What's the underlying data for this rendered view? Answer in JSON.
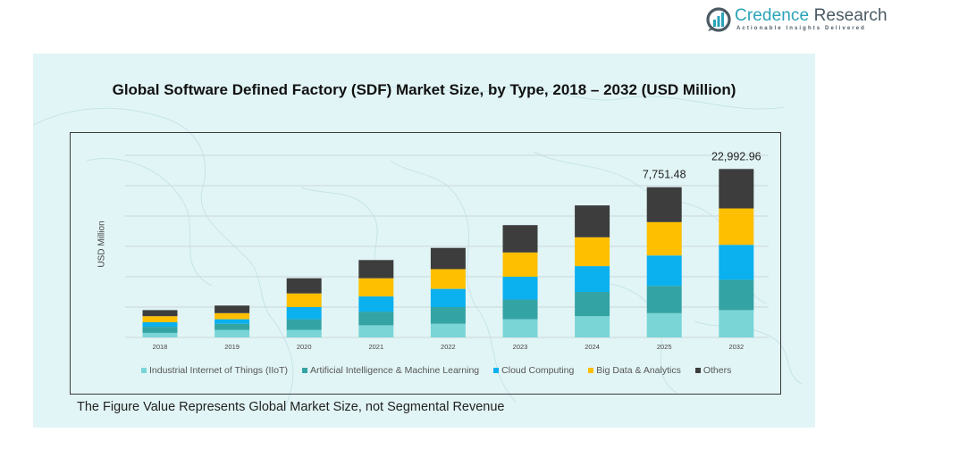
{
  "logo": {
    "brand_primary": "Credence",
    "brand_secondary": "Research",
    "tagline": "Actionable Insights Delivered",
    "icon": "bar-chart-speech-bubble-icon",
    "colors": {
      "primary": "#2aa3b8",
      "secondary": "#4a5a63"
    }
  },
  "footnote": "The Figure Value Represents Global Market Size, not Segmental Revenue",
  "chart_data": {
    "type": "bar",
    "stacked": true,
    "title": "Global Software Defined Factory (SDF) Market Size, by Type, 2018 – 2032 (USD Million)",
    "xlabel": "",
    "ylabel": "USD Million",
    "y_tick_labels_shown": false,
    "grid": true,
    "gridline_count": 7,
    "ylim_gridline_units": [
      0,
      6
    ],
    "value_units_note": "bar segment values estimated in gridline units (no y tick labels shown); totals labeled only for 2025 and 2032",
    "legend_position": "bottom",
    "categories": [
      "2018",
      "2019",
      "2020",
      "2021",
      "2022",
      "2023",
      "2024",
      "2025",
      "2032"
    ],
    "series": [
      {
        "name": "Industrial Internet of Things (IIoT)",
        "color": "#79d5d6",
        "values": [
          0.15,
          0.25,
          0.25,
          0.4,
          0.45,
          0.6,
          0.7,
          0.8,
          0.9
        ]
      },
      {
        "name": "Artificial Intelligence & Machine Learning",
        "color": "#34a3a4",
        "values": [
          0.2,
          0.2,
          0.35,
          0.45,
          0.55,
          0.65,
          0.8,
          0.9,
          1.0
        ]
      },
      {
        "name": "Cloud Computing",
        "color": "#0bb0ef",
        "values": [
          0.15,
          0.15,
          0.4,
          0.5,
          0.6,
          0.75,
          0.85,
          1.0,
          1.15
        ]
      },
      {
        "name": "Big Data & Analytics",
        "color": "#fdbf00",
        "values": [
          0.2,
          0.2,
          0.45,
          0.6,
          0.65,
          0.8,
          0.95,
          1.1,
          1.2
        ]
      },
      {
        "name": "Others",
        "color": "#3d3d3d",
        "values": [
          0.2,
          0.25,
          0.5,
          0.6,
          0.7,
          0.9,
          1.05,
          1.15,
          1.3
        ]
      }
    ],
    "data_labels": [
      {
        "category": "2025",
        "text": "7,751.48",
        "value": 7751.48
      },
      {
        "category": "2032",
        "text": "22,992.96",
        "value": 22992.96
      }
    ],
    "legend": [
      "Industrial Internet of Things (IIoT)",
      "Artificial Intelligence & Machine Learning",
      "Cloud Computing",
      "Big Data & Analytics",
      "Others"
    ]
  }
}
